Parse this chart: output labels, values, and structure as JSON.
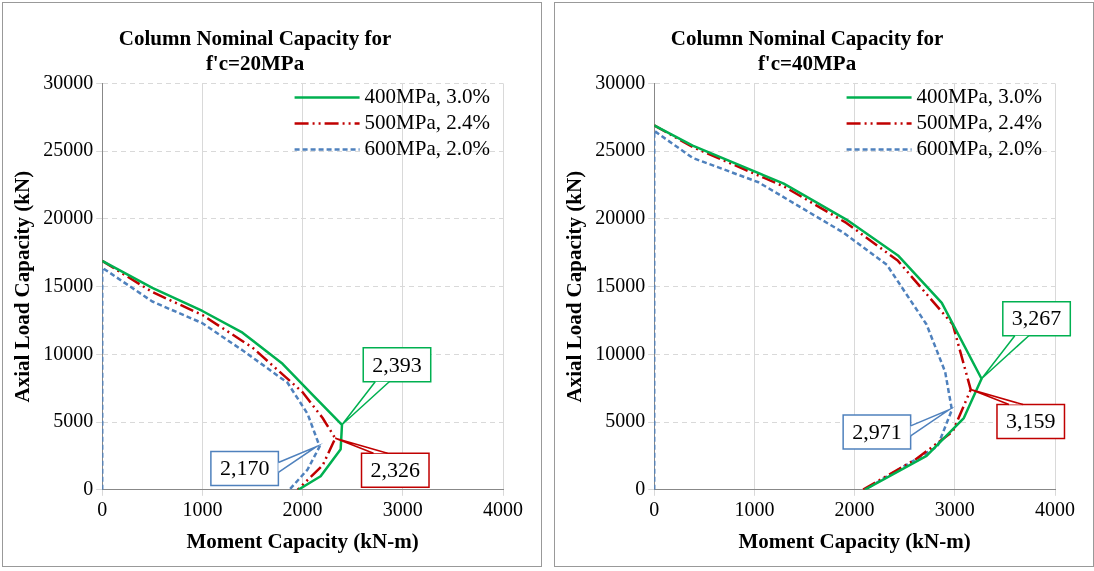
{
  "chart_data": [
    {
      "type": "line",
      "title": "Column Nominal Capacity for f'c=20MPa",
      "xlabel": "Moment Capacity (kN-m)",
      "ylabel": "Axial Load Capacity (kN)",
      "xlim": [
        0,
        4000
      ],
      "xticks": [
        0,
        1000,
        2000,
        3000,
        4000
      ],
      "ylim": [
        0,
        30000
      ],
      "yticks": [
        0,
        5000,
        10000,
        15000,
        20000,
        25000,
        30000
      ],
      "grid": true,
      "legend": "top right",
      "marker": "none",
      "series": [
        {
          "name": "400MPa, 3.0%",
          "color": "#00b050",
          "line_style": "solid",
          "x": [
            0,
            500,
            1000,
            1400,
            1800,
            2100,
            2393,
            2380,
            2180,
            1956
          ],
          "values": [
            16900,
            14900,
            13200,
            11600,
            9300,
            7000,
            4800,
            3000,
            1000,
            0
          ]
        },
        {
          "name": "500MPa, 2.4%",
          "color": "#c00000",
          "line_style": "dashed",
          "x": [
            0,
            500,
            1000,
            1500,
            2000,
            2200,
            2326,
            2200,
            1950
          ],
          "values": [
            16900,
            14600,
            12900,
            10500,
            7200,
            5300,
            3800,
            1800,
            0
          ]
        },
        {
          "name": "600MPa, 2.0%",
          "color": "#4f81bd",
          "line_style": "dotted",
          "x": [
            0,
            0,
            500,
            1000,
            1400,
            1850,
            2050,
            2170,
            2050,
            1868
          ],
          "values": [
            0,
            16400,
            13900,
            12300,
            10300,
            7900,
            5600,
            3200,
            1500,
            0
          ]
        }
      ],
      "annotations": [
        {
          "text": "2,393",
          "x": 2393,
          "y": 4800
        },
        {
          "text": "2,326",
          "x": 2326,
          "y": 3800
        },
        {
          "text": "2,170",
          "x": 2170,
          "y": 3200
        }
      ]
    },
    {
      "type": "line",
      "title": "Column Nominal Capacity for f'c=40MPa",
      "xlabel": "Moment Capacity (kN-m)",
      "ylabel": "Axial Load Capacity (kN)",
      "xlim": [
        0,
        4000
      ],
      "xticks": [
        0,
        1000,
        2000,
        3000,
        4000
      ],
      "ylim": [
        0,
        30000
      ],
      "yticks": [
        0,
        5000,
        10000,
        15000,
        20000,
        25000,
        30000
      ],
      "grid": true,
      "legend": "top right",
      "marker": "none",
      "series": [
        {
          "name": "400MPa, 3.0%",
          "color": "#00b050",
          "line_style": "solid",
          "x": [
            0,
            384,
            1293,
            1918,
            2433,
            2870,
            3267,
            3090,
            2718,
            2100
          ],
          "values": [
            26900,
            25400,
            22600,
            19950,
            17300,
            13800,
            8200,
            5300,
            2500,
            0
          ]
        },
        {
          "name": "500MPa, 2.4%",
          "color": "#c00000",
          "line_style": "dashed",
          "x": [
            0,
            384,
            1293,
            1918,
            2433,
            2980,
            3159,
            2980,
            2600,
            2080
          ],
          "values": [
            26900,
            25300,
            22400,
            19700,
            16900,
            12200,
            7400,
            4300,
            2200,
            0
          ]
        },
        {
          "name": "600MPa, 2.0%",
          "color": "#4f81bd",
          "line_style": "dotted",
          "x": [
            0,
            0,
            384,
            1041,
            1885,
            2323,
            2718,
            2904,
            2971,
            2827,
            2100
          ],
          "values": [
            0,
            26500,
            24500,
            22700,
            19000,
            16600,
            12200,
            8700,
            5900,
            3200,
            0
          ]
        }
      ],
      "annotations": [
        {
          "text": "3,267",
          "x": 3267,
          "y": 8200
        },
        {
          "text": "3,159",
          "x": 3159,
          "y": 7400
        },
        {
          "text": "2,971",
          "x": 2971,
          "y": 5900
        }
      ]
    }
  ]
}
